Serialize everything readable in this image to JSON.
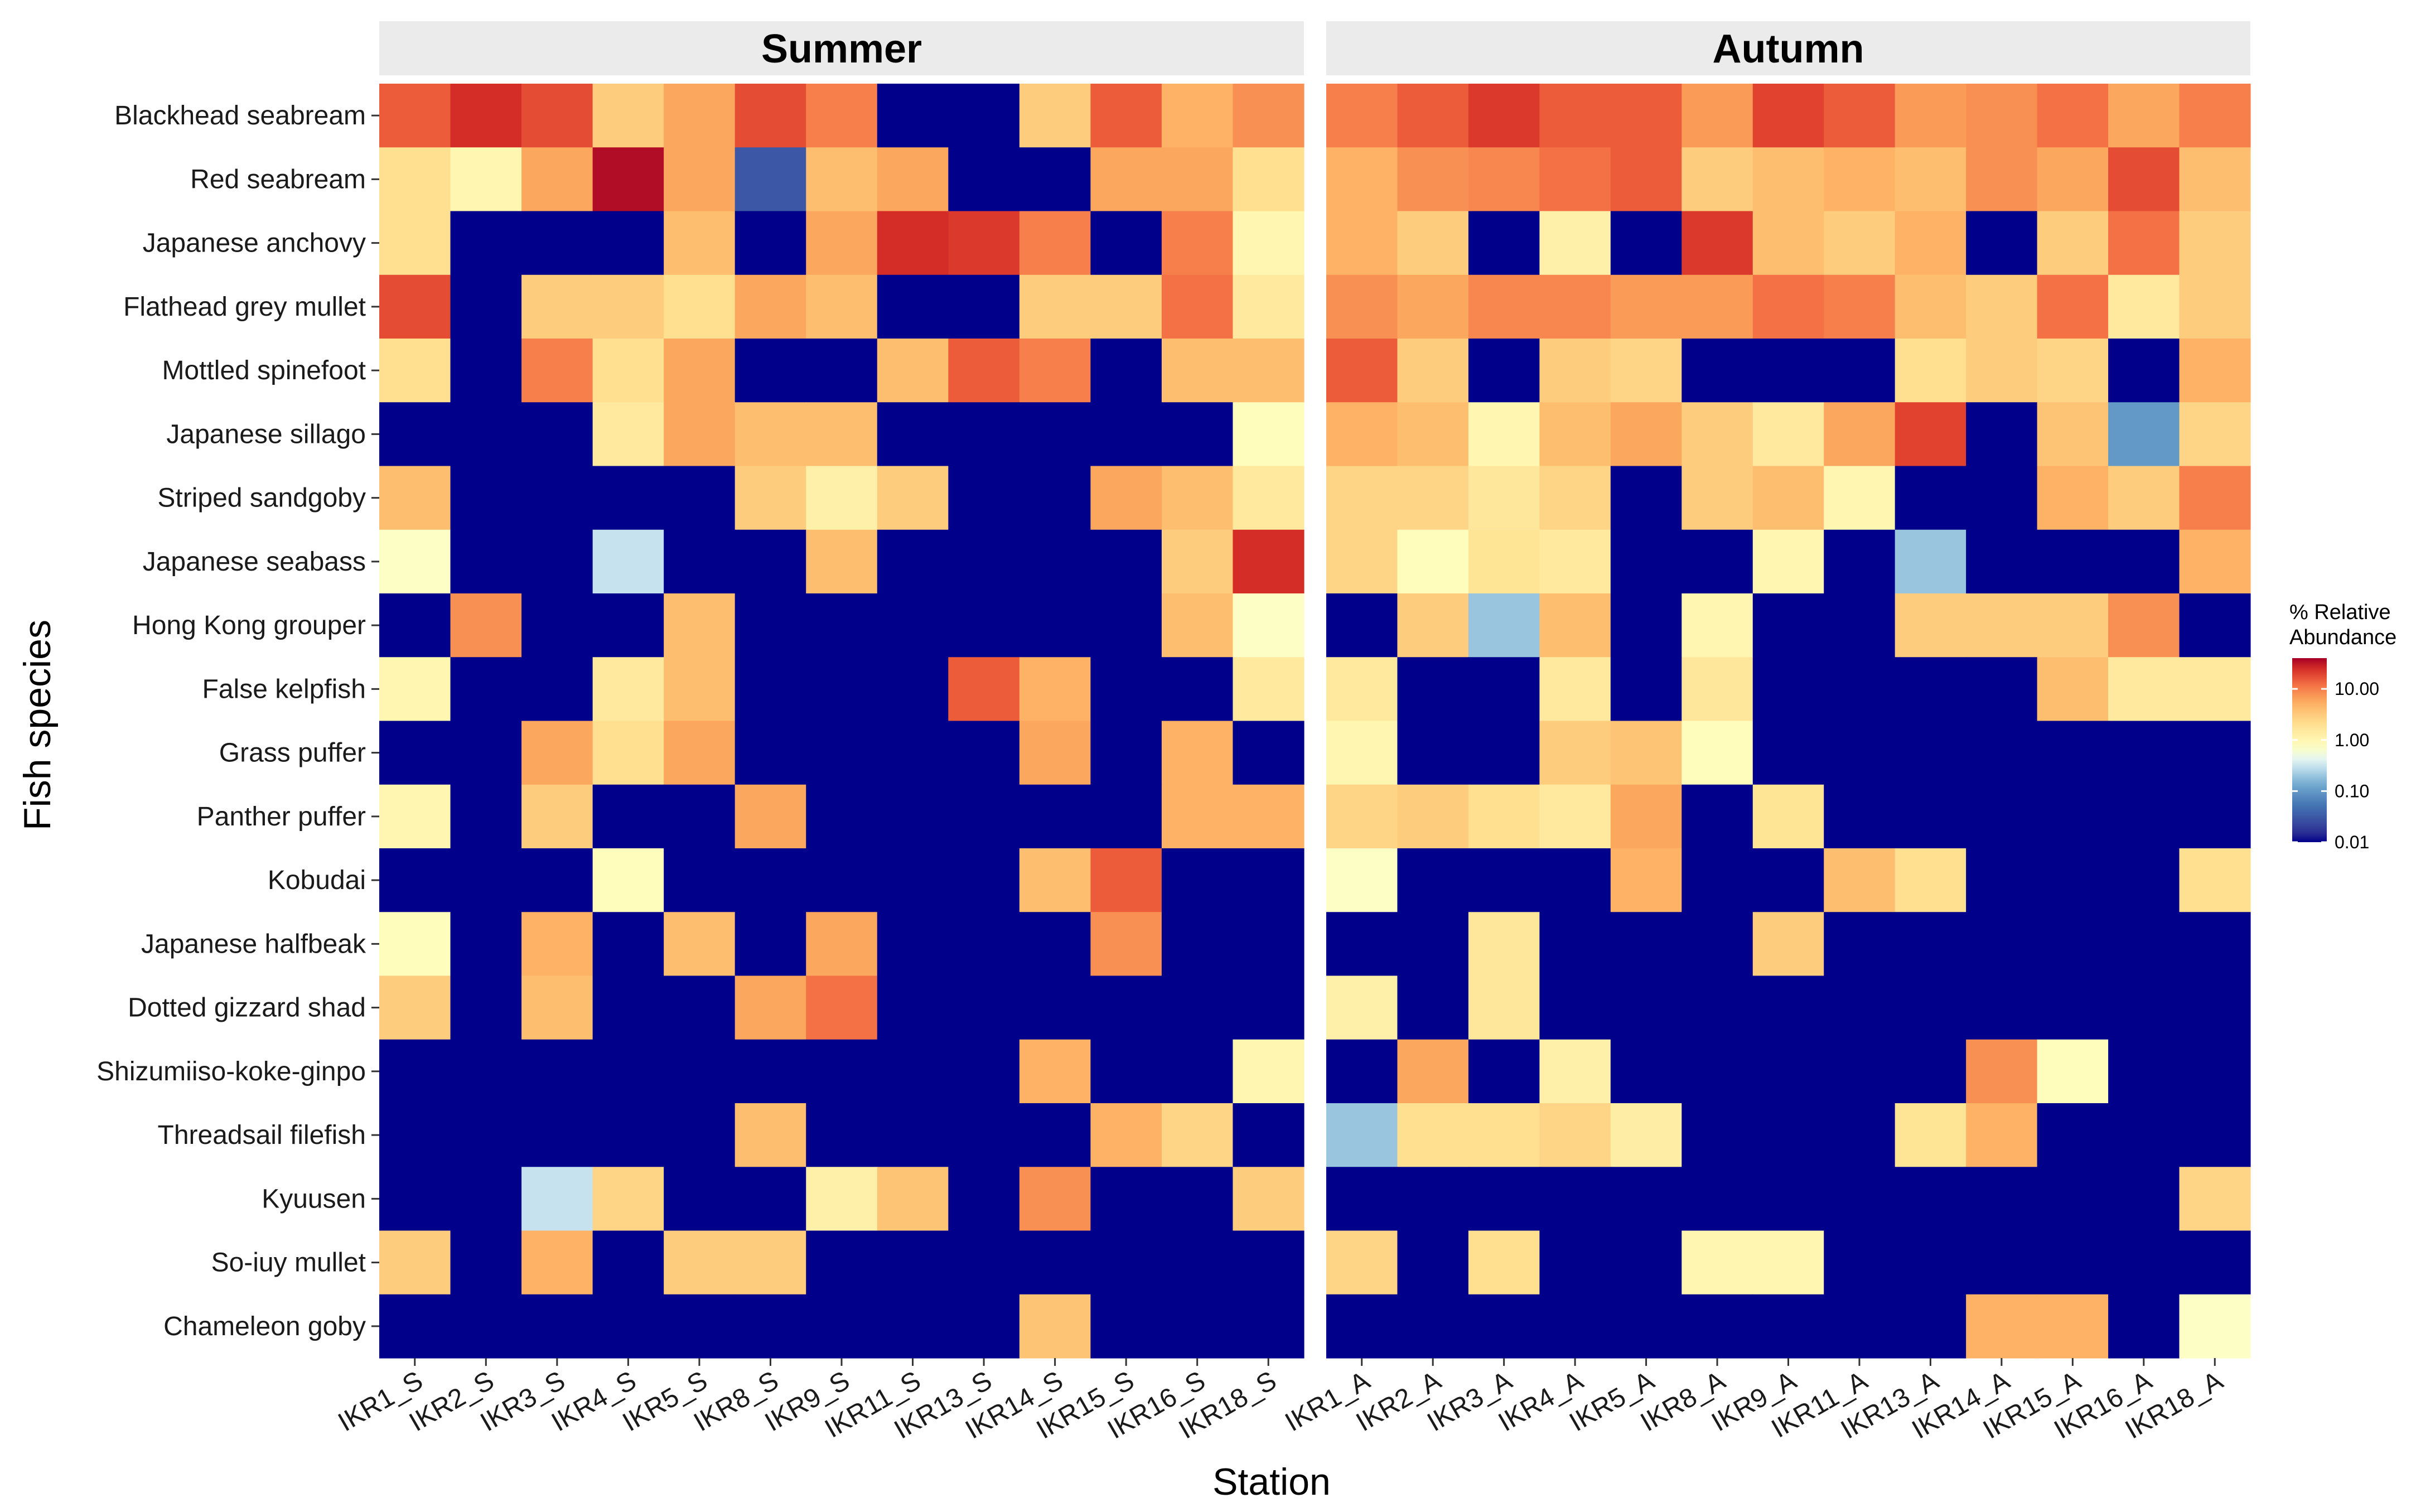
{
  "chart_data": {
    "type": "heatmap",
    "xlabel": "Station",
    "ylabel": "Fish species",
    "species": [
      "Blackhead seabream",
      "Red seabream",
      "Japanese anchovy",
      "Flathead grey mullet",
      "Mottled spinefoot",
      "Japanese sillago",
      "Striped sandgoby",
      "Japanese seabass",
      "Hong Kong grouper",
      "False kelpfish",
      "Grass puffer",
      "Panther puffer",
      "Kobudai",
      "Japanese halfbeak",
      "Dotted gizzard shad",
      "Shizumiiso-koke-ginpo",
      "Threadsail filefish",
      "Kyuusen",
      "So-iuy mullet",
      "Chameleon goby"
    ],
    "legend": {
      "title_line1": "% Relative",
      "title_line2": "Abundance",
      "ticks": [
        {
          "value": 10,
          "label": "10.00"
        },
        {
          "value": 1,
          "label": "1.00"
        },
        {
          "value": 0.1,
          "label": "0.10"
        },
        {
          "value": 0.01,
          "label": "0.01"
        }
      ],
      "range": [
        0.01,
        40
      ],
      "scale": "log10"
    },
    "panels": [
      {
        "title": "Summer",
        "stations": [
          "IKR1_S",
          "IKR2_S",
          "IKR3_S",
          "IKR4_S",
          "IKR5_S",
          "IKR8_S",
          "IKR9_S",
          "IKR11_S",
          "IKR13_S",
          "IKR14_S",
          "IKR15_S",
          "IKR16_S",
          "IKR18_S"
        ],
        "values": [
          [
            15,
            25,
            18,
            3,
            6,
            18,
            10,
            0.01,
            0.01,
            3,
            15,
            5,
            8
          ],
          [
            2,
            1,
            6,
            35,
            6,
            0.03,
            4,
            6,
            0.01,
            0.01,
            6,
            6,
            2
          ],
          [
            2,
            0.01,
            0.01,
            0.01,
            4,
            0.01,
            6,
            25,
            22,
            10,
            0.01,
            10,
            1
          ],
          [
            18,
            0.01,
            3,
            3,
            2,
            6,
            4,
            0.01,
            0.01,
            3,
            3,
            12,
            1.5
          ],
          [
            2,
            0.01,
            10,
            2,
            6,
            0.01,
            0.01,
            4,
            15,
            10,
            0.01,
            4,
            4
          ],
          [
            0.01,
            0.01,
            0.01,
            1.5,
            6,
            4,
            4,
            0.01,
            0.01,
            0.01,
            0.01,
            0.01,
            0.8
          ],
          [
            4,
            0.01,
            0.01,
            0.01,
            0.01,
            3,
            1.2,
            3,
            0.01,
            0.01,
            6,
            4,
            1.5
          ],
          [
            0.7,
            0.01,
            0.01,
            0.3,
            0.01,
            0.01,
            4,
            0.01,
            0.01,
            0.01,
            0.01,
            3,
            25
          ],
          [
            0.01,
            8,
            0.01,
            0.01,
            4,
            0.01,
            0.01,
            0.01,
            0.01,
            0.01,
            0.01,
            4,
            0.7
          ],
          [
            1,
            0.01,
            0.01,
            1.5,
            4,
            0.01,
            0.01,
            0.01,
            15,
            5,
            0.01,
            0.01,
            1.5
          ],
          [
            0.01,
            0.01,
            6,
            2,
            6,
            0.01,
            0.01,
            0.01,
            0.01,
            6,
            0.01,
            5,
            0.01
          ],
          [
            1,
            0.01,
            3,
            0.01,
            0.01,
            6,
            0.01,
            0.01,
            0.01,
            0.01,
            0.01,
            5,
            5
          ],
          [
            0.01,
            0.01,
            0.01,
            0.8,
            0.01,
            0.01,
            0.01,
            0.01,
            0.01,
            4,
            15,
            0.01,
            0.01
          ],
          [
            0.8,
            0.01,
            5,
            0.01,
            4,
            0.01,
            6,
            0.01,
            0.01,
            0.01,
            8,
            0.01,
            0.01
          ],
          [
            3,
            0.01,
            4,
            0.01,
            0.01,
            6,
            12,
            0.01,
            0.01,
            0.01,
            0.01,
            0.01,
            0.01
          ],
          [
            0.01,
            0.01,
            0.01,
            0.01,
            0.01,
            0.01,
            0.01,
            0.01,
            0.01,
            5,
            0.01,
            0.01,
            1
          ],
          [
            0.01,
            0.01,
            0.01,
            0.01,
            0.01,
            4,
            0.01,
            0.01,
            0.01,
            0.01,
            5,
            2.5,
            0.01
          ],
          [
            0.01,
            0.01,
            0.3,
            2.5,
            0.01,
            0.01,
            1.2,
            3.5,
            0.01,
            8,
            0.01,
            0.01,
            3
          ],
          [
            3,
            0.01,
            5,
            0.01,
            3,
            3,
            0.01,
            0.01,
            0.01,
            0.01,
            0.01,
            0.01,
            0.01
          ],
          [
            0.01,
            0.01,
            0.01,
            0.01,
            0.01,
            0.01,
            0.01,
            0.01,
            0.01,
            3.5,
            0.01,
            0.01,
            0.01
          ]
        ]
      },
      {
        "title": "Autumn",
        "stations": [
          "IKR1_A",
          "IKR2_A",
          "IKR3_A",
          "IKR4_A",
          "IKR5_A",
          "IKR8_A",
          "IKR9_A",
          "IKR11_A",
          "IKR13_A",
          "IKR14_A",
          "IKR15_A",
          "IKR16_A",
          "IKR18_A"
        ],
        "values": [
          [
            10,
            15,
            22,
            15,
            15,
            7,
            20,
            15,
            7,
            8,
            12,
            6,
            10
          ],
          [
            5,
            8,
            9,
            12,
            15,
            3,
            4,
            5,
            4,
            8,
            6,
            18,
            4
          ],
          [
            5,
            3,
            0.01,
            1.2,
            0.01,
            22,
            4,
            3,
            5,
            0.01,
            3,
            12,
            3
          ],
          [
            8,
            6,
            9,
            9,
            7,
            7,
            12,
            10,
            4,
            3,
            12,
            1.5,
            3
          ],
          [
            15,
            3,
            0.01,
            3,
            2.5,
            0.01,
            0.01,
            0.01,
            2,
            3,
            2.5,
            0.01,
            5
          ],
          [
            5,
            4,
            1,
            4,
            6,
            3,
            1.5,
            6,
            20,
            0.01,
            3.5,
            0.1,
            2.5
          ],
          [
            2.5,
            2.5,
            1.6,
            2.5,
            0.01,
            3,
            4,
            1,
            0.01,
            0.01,
            5,
            3,
            10
          ],
          [
            2.5,
            0.8,
            1.8,
            1.5,
            0.01,
            0.01,
            1,
            0.01,
            0.2,
            0.01,
            0.01,
            0.01,
            5
          ],
          [
            0.01,
            3,
            0.2,
            4,
            0.01,
            1,
            0.01,
            0.01,
            3,
            3,
            3,
            8,
            0.01
          ],
          [
            1.5,
            0.01,
            0.01,
            1.5,
            0.01,
            1.6,
            0.01,
            0.01,
            0.01,
            0.01,
            4,
            1.5,
            1.5
          ],
          [
            1,
            0.01,
            0.01,
            3,
            3.5,
            0.8,
            0.01,
            0.01,
            0.01,
            0.01,
            0.01,
            0.01,
            0.01
          ],
          [
            2.5,
            3,
            2,
            1.5,
            6,
            0.01,
            1.8,
            0.01,
            0.01,
            0.01,
            0.01,
            0.01,
            0.01
          ],
          [
            0.7,
            0.01,
            0.01,
            0.01,
            5,
            0.01,
            0.01,
            4,
            2,
            0.01,
            0.01,
            0.01,
            2
          ],
          [
            0.01,
            0.01,
            1.6,
            0.01,
            0.01,
            0.01,
            3,
            0.01,
            0.01,
            0.01,
            0.01,
            0.01,
            0.01
          ],
          [
            1.2,
            0.01,
            1.6,
            0.01,
            0.01,
            0.01,
            0.01,
            0.01,
            0.01,
            0.01,
            0.01,
            0.01,
            0.01
          ],
          [
            0.01,
            6,
            0.01,
            1.2,
            0.01,
            0.01,
            0.01,
            0.01,
            0.01,
            8,
            0.8,
            0.01,
            0.01
          ],
          [
            0.2,
            2,
            2,
            2.5,
            1.3,
            0.01,
            0.01,
            0.01,
            1.8,
            5,
            0.01,
            0.01,
            0.01
          ],
          [
            0.01,
            0.01,
            0.01,
            0.01,
            0.01,
            0.01,
            0.01,
            0.01,
            0.01,
            0.01,
            0.01,
            0.01,
            2.5
          ],
          [
            2.5,
            0.01,
            2,
            0.01,
            0.01,
            1,
            1,
            0.01,
            0.01,
            0.01,
            0.01,
            0.01,
            0.01
          ],
          [
            0.01,
            0.01,
            0.01,
            0.01,
            0.01,
            0.01,
            0.01,
            0.01,
            0.01,
            5,
            5,
            0.01,
            0.7
          ]
        ]
      }
    ]
  }
}
